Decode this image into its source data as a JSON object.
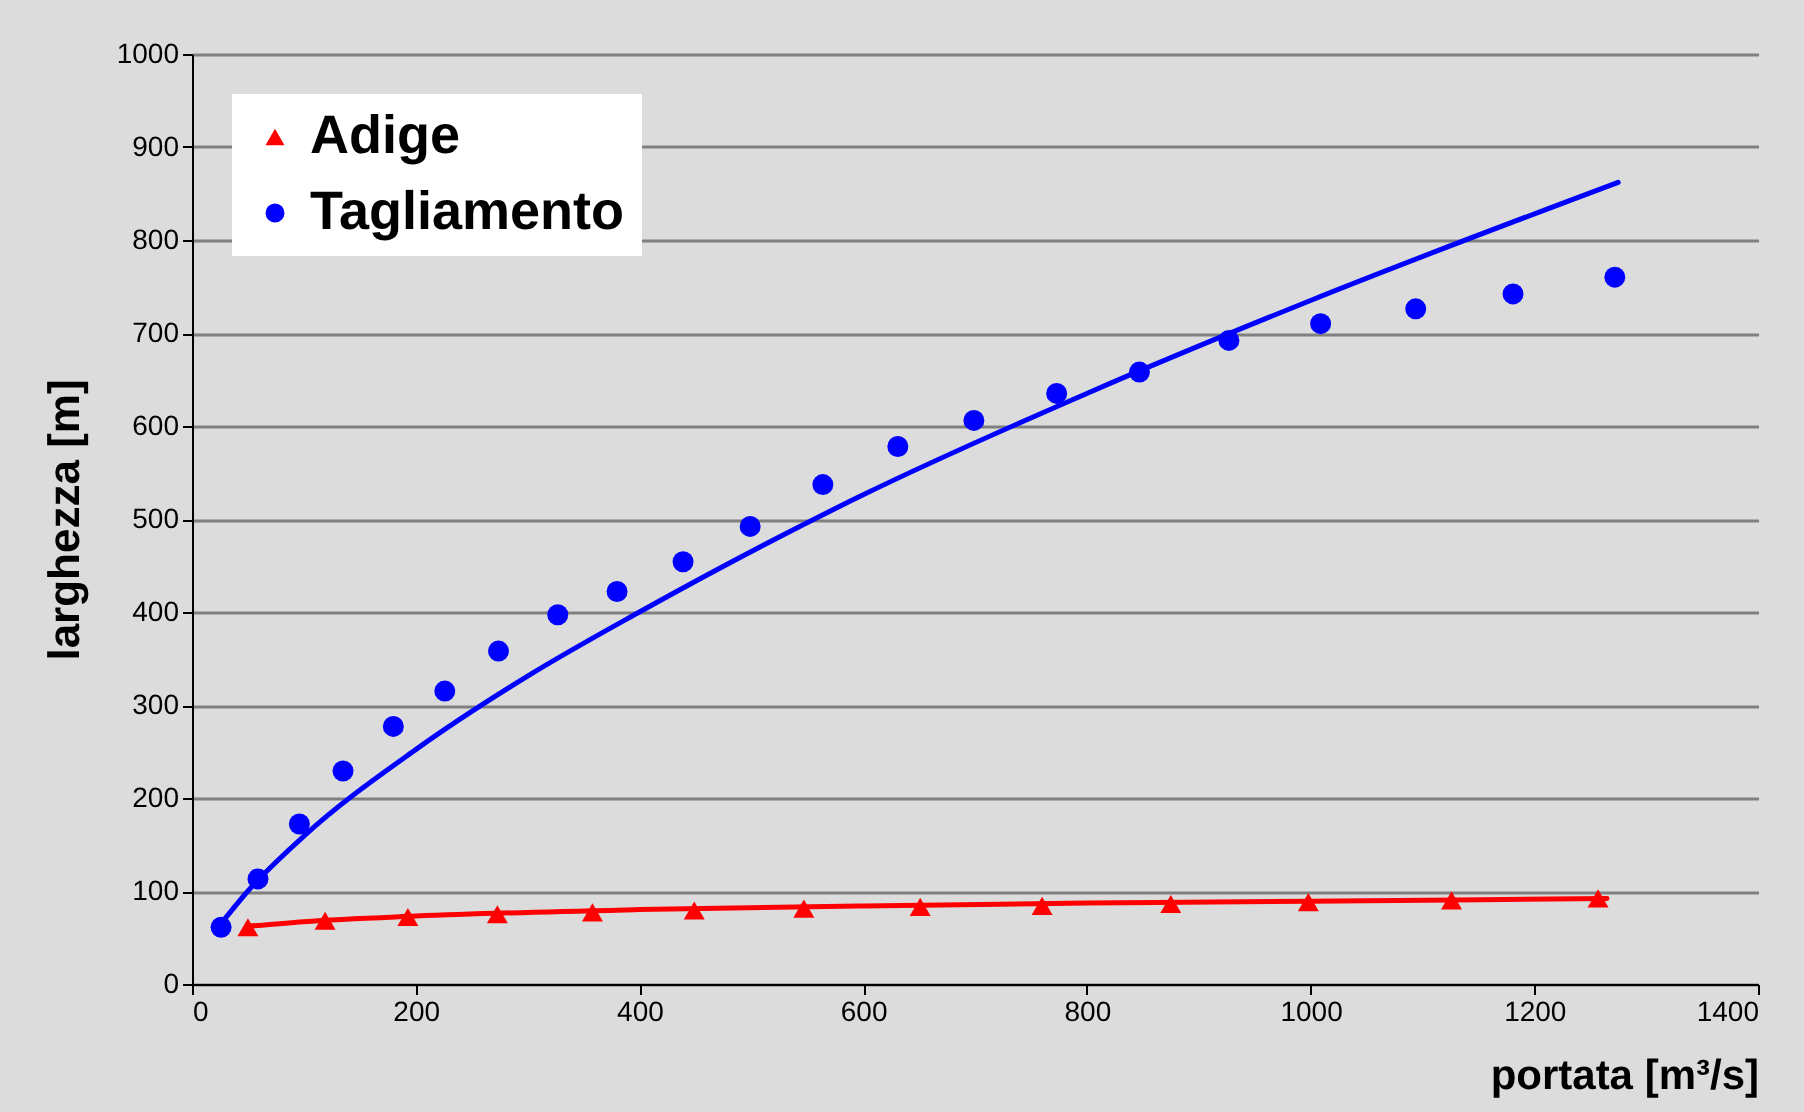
{
  "chart_data": {
    "type": "scatter",
    "xlabel": "portata [m³/s]",
    "ylabel": "larghezza [m]",
    "xlim": [
      0,
      1400
    ],
    "xticks": [
      0,
      200,
      400,
      600,
      800,
      1000,
      1200,
      1400
    ],
    "ylim": [
      0,
      1000
    ],
    "yticks": [
      0,
      100,
      200,
      300,
      400,
      500,
      600,
      700,
      800,
      900,
      1000
    ],
    "grid": "y",
    "legend": "top left",
    "series": [
      {
        "name": "Adige",
        "marker": "triangle",
        "color": "#ff0000",
        "x": [
          50,
          119,
          193,
          273,
          358,
          449,
          547,
          651,
          760,
          875,
          998,
          1126,
          1257
        ],
        "values": [
          61,
          68,
          72,
          75,
          77,
          79,
          81,
          83,
          84,
          86,
          88,
          90,
          92
        ]
      },
      {
        "name": "Tagliamento",
        "marker": "circle",
        "color": "#0000ff",
        "x": [
          26,
          59,
          96,
          135,
          180,
          226,
          274,
          327,
          380,
          439,
          499,
          564,
          631,
          699,
          773,
          847,
          927,
          1009,
          1094,
          1181,
          1272
        ],
        "values": [
          61,
          113,
          172,
          229,
          277,
          315,
          358,
          397,
          422,
          454,
          492,
          537,
          578,
          606,
          635,
          658,
          692,
          710,
          726,
          742,
          760
        ]
      },
      {
        "type": "line",
        "marker": "none",
        "color": "#ff0000",
        "x": [
          50,
          100,
          200,
          400,
          600,
          800,
          1000,
          1265
        ],
        "values": [
          62,
          67,
          73,
          80,
          84,
          87,
          89,
          92
        ]
      },
      {
        "type": "line",
        "marker": "none",
        "color": "#0000ff",
        "x": [
          26,
          50,
          100,
          200,
          300,
          400,
          600,
          800,
          1000,
          1275
        ],
        "values": [
          65,
          100,
          159,
          252,
          331,
          400,
          526,
          635,
          735,
          862
        ]
      }
    ]
  }
}
